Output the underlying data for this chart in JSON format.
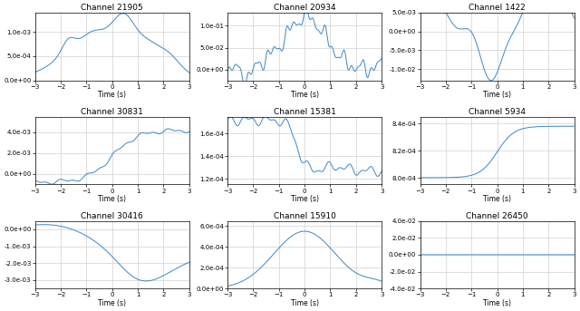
{
  "channels": [
    {
      "title": "Channel 21905",
      "ylim": [
        0.0,
        0.0014
      ]
    },
    {
      "title": "Channel 20934",
      "ylim": [
        -0.025,
        0.13
      ]
    },
    {
      "title": "Channel 1422",
      "ylim": [
        -0.013,
        0.005
      ]
    },
    {
      "title": "Channel 30831",
      "ylim": [
        -0.001,
        0.0055
      ]
    },
    {
      "title": "Channel 15381",
      "ylim": [
        0.000115,
        0.000175
      ]
    },
    {
      "title": "Channel 5934",
      "ylim": [
        0.000795,
        0.000845
      ]
    },
    {
      "title": "Channel 30416",
      "ylim": [
        -0.0035,
        0.0005
      ]
    },
    {
      "title": "Channel 15910",
      "ylim": [
        0.0,
        0.00065
      ]
    },
    {
      "title": "Channel 26450",
      "ylim": [
        -0.04,
        0.04
      ]
    }
  ],
  "line_color": "#3a87c8",
  "background_color": "#ffffff",
  "grid_color": "#d0d0d0",
  "xlabel": "Time (s)",
  "xlim": [
    -3,
    3
  ],
  "xticks": [
    -3,
    -2,
    -1,
    0,
    1,
    2,
    3
  ]
}
